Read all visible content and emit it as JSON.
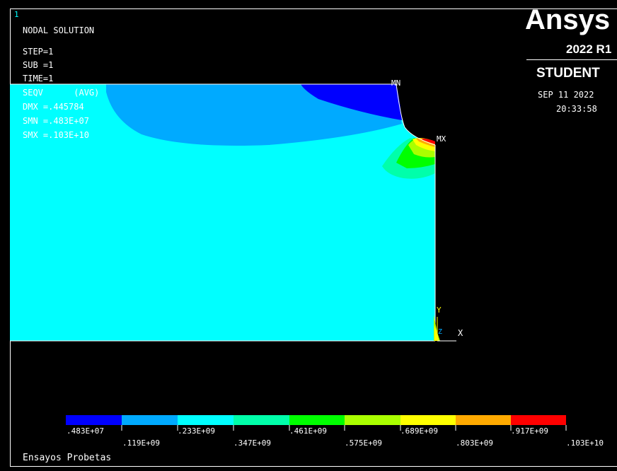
{
  "window_number": "1",
  "header": {
    "title": "NODAL SOLUTION",
    "step": "STEP=1",
    "sub": "SUB =1",
    "time": "TIME=1",
    "result": "SEQV      (AVG)",
    "dmx": "DMX =.445784",
    "smn": "SMN =.483E+07",
    "smx": "SMX =.103E+10"
  },
  "brand": {
    "logo": "Ansys",
    "release": "2022 R1",
    "edition": "STUDENT",
    "date": "SEP 11 2022",
    "time": "20:33:58"
  },
  "labels": {
    "mn": "MN",
    "mx": "MX",
    "axis_y": "Y",
    "axis_z": "Z",
    "axis_x": "X"
  },
  "footer": {
    "title": "Ensayos Probetas"
  },
  "colors": {
    "c1": "#0000ff",
    "c2": "#00aaff",
    "c3": "#00ffff",
    "c4": "#00ffaa",
    "c5": "#00ff00",
    "c6": "#aaff00",
    "c7": "#ffff00",
    "c8": "#ffaa00",
    "c9": "#ff0000"
  },
  "legend": {
    "top_ticks": [
      ".483E+07",
      ".233E+09",
      ".461E+09",
      ".689E+09",
      ".917E+09"
    ],
    "bottom_ticks": [
      ".119E+09",
      ".347E+09",
      ".575E+09",
      ".803E+09",
      ".103E+10"
    ]
  }
}
